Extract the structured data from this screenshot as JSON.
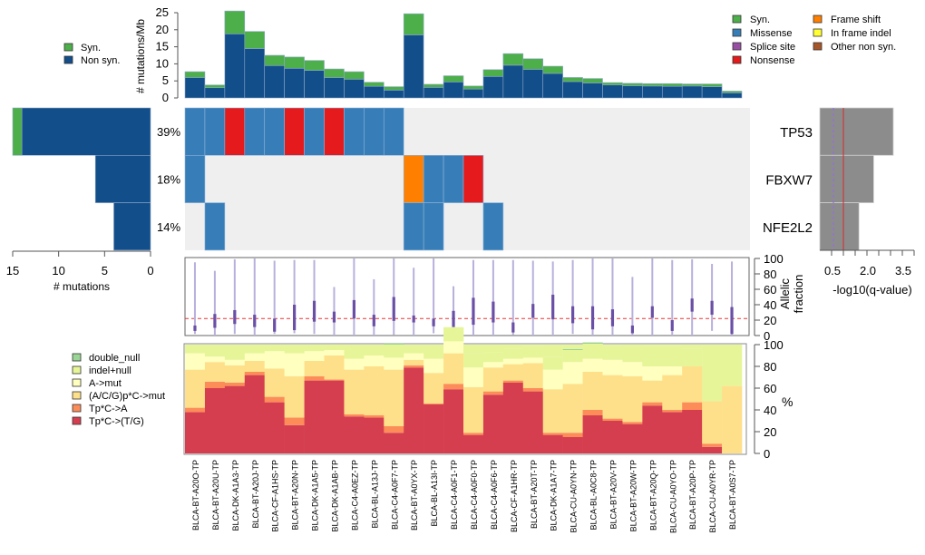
{
  "chart_data": [
    {
      "id": "mutation_rate",
      "type": "bar",
      "title": "",
      "ylabel": "# mutations/Mb",
      "ylim": [
        0,
        25
      ],
      "yticks": [
        0,
        5,
        10,
        15,
        20,
        25
      ],
      "legend": {
        "position": "left",
        "entries": [
          {
            "label": "Syn.",
            "color": "#4daf4a"
          },
          {
            "label": "Non syn.",
            "color": "#124e8a"
          }
        ]
      },
      "series": [
        {
          "name": "Non syn.",
          "color": "#124e8a",
          "values": [
            6.0,
            3.0,
            18.8,
            14.5,
            9.5,
            8.7,
            8.1,
            6.0,
            5.5,
            3.4,
            2.3,
            18.5,
            3.1,
            4.7,
            2.6,
            6.3,
            9.6,
            8.4,
            7.2,
            4.8,
            4.4,
            3.8,
            3.6,
            3.5,
            3.4,
            3.5,
            3.3,
            1.5
          ]
        },
        {
          "name": "Syn.",
          "color": "#4daf4a",
          "values": [
            1.7,
            0.8,
            6.7,
            5.0,
            3.0,
            3.3,
            2.9,
            2.5,
            2.2,
            1.2,
            1.0,
            6.2,
            0.9,
            1.8,
            0.9,
            2.0,
            3.4,
            3.1,
            2.1,
            1.2,
            1.3,
            0.7,
            0.7,
            0.7,
            0.8,
            0.6,
            0.8,
            0.5
          ]
        }
      ]
    },
    {
      "id": "gene_counts",
      "type": "bar",
      "orientation": "horizontal",
      "xlabel": "# mutations",
      "xlim": [
        15,
        0
      ],
      "xticks": [
        15,
        10,
        5,
        0
      ],
      "categories": [
        "TP53",
        "FBXW7",
        "NFE2L2"
      ],
      "series": [
        {
          "name": "Non syn.",
          "color": "#124e8a",
          "values": [
            14,
            6,
            4
          ]
        },
        {
          "name": "Syn.",
          "color": "#4daf4a",
          "values": [
            1,
            0,
            0
          ]
        }
      ],
      "percent_labels": [
        "39%",
        "18%",
        "14%"
      ]
    },
    {
      "id": "oncoprint",
      "type": "heatmap",
      "genes": [
        "TP53",
        "FBXW7",
        "NFE2L2"
      ],
      "legend": {
        "position": "top-right",
        "entries": [
          {
            "key": "syn",
            "label": "Syn.",
            "color": "#4daf4a"
          },
          {
            "key": "mis",
            "label": "Missense",
            "color": "#377eb8"
          },
          {
            "key": "spl",
            "label": "Splice site",
            "color": "#984ea3"
          },
          {
            "key": "non",
            "label": "Nonsense",
            "color": "#e41a1c"
          },
          {
            "key": "fs",
            "label": "Frame shift",
            "color": "#ff7f00"
          },
          {
            "key": "ifi",
            "label": "In frame indel",
            "color": "#ffff33"
          },
          {
            "key": "oth",
            "label": "Other non syn.",
            "color": "#a65628"
          }
        ]
      },
      "background": "#efefef",
      "matrix": [
        [
          "mis",
          "mis",
          "non",
          "mis",
          "mis",
          "non",
          "mis",
          "non",
          "mis",
          "mis",
          "mis",
          "",
          "",
          "",
          "",
          "",
          "",
          "",
          "",
          "",
          "",
          "",
          "",
          "",
          "",
          "",
          "",
          ""
        ],
        [
          "mis",
          "",
          "",
          "",
          "",
          "",
          "",
          "",
          "",
          "",
          "",
          "fs",
          "mis",
          "mis",
          "non",
          "",
          "",
          "",
          "",
          "",
          "",
          "",
          "",
          "",
          "",
          "",
          "",
          ""
        ],
        [
          "",
          "mis",
          "",
          "",
          "",
          "",
          "",
          "",
          "",
          "",
          "",
          "mis",
          "mis",
          "",
          "",
          "mis",
          "",
          "",
          "",
          "",
          "",
          "",
          "",
          "",
          "",
          "",
          "",
          ""
        ]
      ]
    },
    {
      "id": "qvalue",
      "type": "bar",
      "orientation": "horizontal",
      "xlabel": "-log10(q-value)",
      "xticklabels": [
        "0.5",
        "2.0",
        "3.5"
      ],
      "categories": [
        "TP53",
        "FBXW7",
        "NFE2L2"
      ],
      "values": [
        3.0,
        2.2,
        1.6
      ],
      "color": "#8c8c8c",
      "reference_lines": [
        {
          "value": 0.5,
          "style": "dashed",
          "color": "#9370db"
        },
        {
          "value": 1.0,
          "style": "solid",
          "color": "#d62728"
        }
      ],
      "xlim": [
        0,
        4.0
      ]
    },
    {
      "id": "allelic_fraction",
      "type": "box",
      "ylabel": "Allelic fraction",
      "ylim": [
        0,
        100
      ],
      "yticks": [
        0,
        20,
        40,
        60,
        80,
        100
      ],
      "reference_line": 22,
      "ranges": [
        [
          2,
          95
        ],
        [
          0,
          84
        ],
        [
          2,
          99
        ],
        [
          0,
          100
        ],
        [
          2,
          97
        ],
        [
          3,
          98
        ],
        [
          2,
          98
        ],
        [
          0,
          63
        ],
        [
          0,
          100
        ],
        [
          0,
          73
        ],
        [
          1,
          100
        ],
        [
          0,
          88
        ],
        [
          3,
          100
        ],
        [
          0,
          64
        ],
        [
          0,
          98
        ],
        [
          0,
          98
        ],
        [
          1,
          98
        ],
        [
          0,
          97
        ],
        [
          0,
          96
        ],
        [
          2,
          98
        ],
        [
          0,
          100
        ],
        [
          0,
          100
        ],
        [
          0,
          76
        ],
        [
          0,
          100
        ],
        [
          0,
          98
        ],
        [
          0,
          99
        ],
        [
          6,
          93
        ],
        [
          0,
          96
        ]
      ],
      "iqr": [
        [
          6,
          13
        ],
        [
          10,
          28
        ],
        [
          15,
          33
        ],
        [
          11,
          27
        ],
        [
          5,
          22
        ],
        [
          7,
          40
        ],
        [
          18,
          45
        ],
        [
          17,
          31
        ],
        [
          22,
          46
        ],
        [
          12,
          27
        ],
        [
          19,
          50
        ],
        [
          17,
          26
        ],
        [
          12,
          22
        ],
        [
          11,
          32
        ],
        [
          14,
          49
        ],
        [
          17,
          44
        ],
        [
          4,
          17
        ],
        [
          23,
          41
        ],
        [
          21,
          53
        ],
        [
          16,
          38
        ],
        [
          8,
          38
        ],
        [
          12,
          34
        ],
        [
          3,
          13
        ],
        [
          23,
          38
        ],
        [
          6,
          20
        ],
        [
          31,
          48
        ],
        [
          27,
          45
        ],
        [
          2,
          37
        ]
      ]
    },
    {
      "id": "mutation_spectrum",
      "type": "bar",
      "stacked": true,
      "ylabel": "%",
      "ylim": [
        0,
        100
      ],
      "yticks": [
        0,
        20,
        40,
        60,
        80,
        100
      ],
      "legend": {
        "position": "left"
      },
      "series": [
        {
          "name": "Tp*C->(T/G)",
          "color": "#d53e4f",
          "values": [
            38,
            60,
            62,
            72,
            47,
            26,
            67,
            67,
            34,
            33,
            19,
            79,
            45,
            59,
            17,
            54,
            65,
            57,
            17,
            15,
            35,
            30,
            27,
            44,
            38,
            40,
            6,
            0
          ]
        },
        {
          "name": "Tp*C->A",
          "color": "#fc8d59",
          "values": [
            4,
            6,
            3,
            3,
            5,
            7,
            4,
            1,
            2,
            2,
            6,
            2,
            1,
            5,
            2,
            3,
            2,
            3,
            2,
            4,
            5,
            2,
            2,
            3,
            2,
            7,
            3,
            0
          ]
        },
        {
          "name": "(A/C/G)p*C->mut",
          "color": "#fee08b",
          "values": [
            35,
            18,
            16,
            10,
            26,
            38,
            14,
            22,
            41,
            45,
            52,
            5,
            28,
            28,
            42,
            22,
            15,
            23,
            40,
            45,
            35,
            40,
            42,
            20,
            32,
            33,
            39,
            62
          ]
        },
        {
          "name": "A->mut",
          "color": "#ffffbf",
          "values": [
            15,
            5,
            5,
            7,
            16,
            21,
            9,
            5,
            10,
            10,
            11,
            6,
            13,
            11,
            18,
            5,
            5,
            5,
            18,
            20,
            12,
            14,
            13,
            13,
            8,
            0,
            0,
            0
          ]
        },
        {
          "name": "indel+null",
          "color": "#e6f598",
          "values": [
            8,
            11,
            14,
            8,
            6,
            8,
            6,
            5,
            13,
            10,
            12,
            8,
            13,
            13,
            13,
            9,
            9,
            11,
            12,
            11,
            14,
            13,
            14,
            19,
            19,
            16,
            0,
            0
          ]
        },
        {
          "name": "double_null",
          "color": "#99d594",
          "values": [
            0,
            0,
            0,
            0,
            0,
            0,
            0,
            0,
            0,
            0,
            1,
            0,
            0,
            0,
            0,
            0,
            0,
            0,
            0,
            1,
            1,
            0,
            0,
            0,
            0,
            0,
            0,
            0
          ]
        }
      ],
      "categories": [
        "BLCA-BT-A20O-TP",
        "BLCA-BT-A20U-TP",
        "BLCA-DK-A1A3-TP",
        "BLCA-BT-A20J-TP",
        "BLCA-CF-A1HS-TP",
        "BLCA-BT-A20N-TP",
        "BLCA-DK-A1A5-TP",
        "BLCA-DK-A1AB-TP",
        "BLCA-C4-A0EZ-TP",
        "BLCA-BL-A13J-TP",
        "BLCA-C4-A0F7-TP",
        "BLCA-BT-A0YX-TP",
        "BLCA-BL-A13I-TP",
        "BLCA-C4-A0F1-TP",
        "BLCA-C4-A0F0-TP",
        "BLCA-C4-A0F6-TP",
        "BLCA-CF-A1HR-TP",
        "BLCA-BT-A20T-TP",
        "BLCA-DK-A1A7-TP",
        "BLCA-CU-A0YN-TP",
        "BLCA-BL-A0C8-TP",
        "BLCA-BT-A20V-TP",
        "BLCA-BT-A20W-TP",
        "BLCA-BT-A20Q-TP",
        "BLCA-CU-A0YO-TP",
        "BLCA-BT-A20P-TP",
        "BLCA-CU-A0YR-TP",
        "BLCA-BT-A0S7-TP"
      ]
    }
  ]
}
